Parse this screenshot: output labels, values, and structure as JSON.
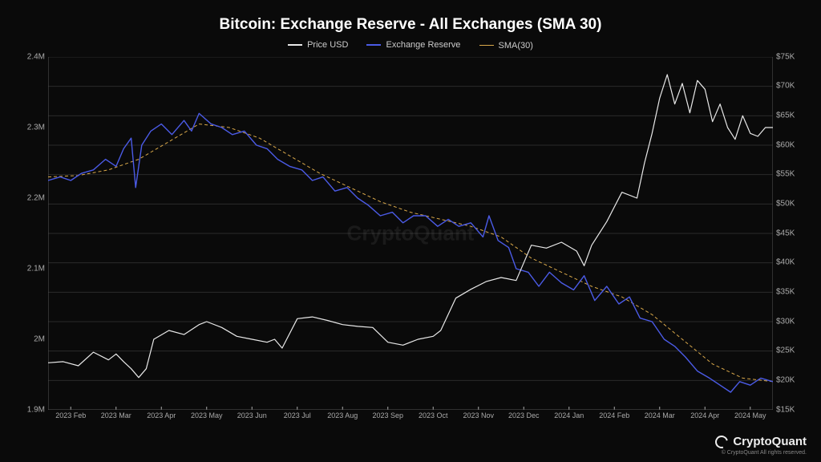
{
  "title": "Bitcoin: Exchange Reserve - All Exchanges (SMA 30)",
  "watermark": "CryptoQuant",
  "brand": {
    "name": "CryptoQuant",
    "copyright": "© CryptoQuant All rights reserved."
  },
  "background_color": "#0a0a0a",
  "text_color": "#ffffff",
  "axis_text_color": "#aaaaaa",
  "grid_color": "#2a2a2a",
  "title_fontsize": 19,
  "legend_fontsize": 11,
  "axis_fontsize": 10,
  "legend": [
    {
      "label": "Price USD",
      "color": "#e8e8e8"
    },
    {
      "label": "Exchange Reserve",
      "color": "#4b5be6"
    },
    {
      "label": "SMA(30)",
      "color": "#d9a84a"
    }
  ],
  "y_left": {
    "min": 1.9,
    "max": 2.4,
    "unit": "M",
    "ticks": [
      1.9,
      2.0,
      2.1,
      2.2,
      2.3,
      2.4
    ],
    "tick_labels": [
      "1.9M",
      "2M",
      "2.1M",
      "2.2M",
      "2.3M",
      "2.4M"
    ]
  },
  "y_right": {
    "min": 15000,
    "max": 75000,
    "unit": "K",
    "ticks": [
      15000,
      20000,
      25000,
      30000,
      35000,
      40000,
      45000,
      50000,
      55000,
      60000,
      65000,
      70000,
      75000
    ],
    "tick_labels": [
      "$15K",
      "$20K",
      "$25K",
      "$30K",
      "$35K",
      "$40K",
      "$45K",
      "$50K",
      "$55K",
      "$60K",
      "$65K",
      "$70K",
      "$75K"
    ]
  },
  "x_axis": {
    "min": 0,
    "max": 480,
    "ticks": [
      15,
      45,
      75,
      105,
      135,
      165,
      195,
      225,
      255,
      285,
      315,
      345,
      375,
      405,
      435,
      465
    ],
    "tick_labels": [
      "2023 Feb",
      "2023 Mar",
      "2023 Apr",
      "2023 May",
      "2023 Jun",
      "2023 Jul",
      "2023 Aug",
      "2023 Sep",
      "2023 Oct",
      "2023 Nov",
      "2023 Dec",
      "2024 Jan",
      "2024 Feb",
      "2024 Mar",
      "2024 Apr",
      "2024 May"
    ]
  },
  "series": {
    "price_usd": {
      "color": "#e8e8e8",
      "line_width": 1.2,
      "y_axis": "right",
      "data": [
        [
          0,
          23000
        ],
        [
          10,
          23200
        ],
        [
          20,
          22500
        ],
        [
          30,
          24800
        ],
        [
          40,
          23500
        ],
        [
          45,
          24500
        ],
        [
          50,
          23200
        ],
        [
          55,
          22000
        ],
        [
          60,
          20500
        ],
        [
          65,
          22000
        ],
        [
          70,
          27000
        ],
        [
          80,
          28500
        ],
        [
          90,
          27800
        ],
        [
          100,
          29500
        ],
        [
          105,
          30000
        ],
        [
          115,
          29000
        ],
        [
          125,
          27500
        ],
        [
          135,
          27000
        ],
        [
          145,
          26500
        ],
        [
          150,
          27000
        ],
        [
          155,
          25500
        ],
        [
          165,
          30500
        ],
        [
          175,
          30800
        ],
        [
          185,
          30200
        ],
        [
          195,
          29500
        ],
        [
          205,
          29200
        ],
        [
          215,
          29000
        ],
        [
          225,
          26500
        ],
        [
          235,
          26000
        ],
        [
          245,
          27000
        ],
        [
          255,
          27500
        ],
        [
          260,
          28500
        ],
        [
          270,
          34000
        ],
        [
          280,
          35500
        ],
        [
          290,
          36800
        ],
        [
          300,
          37500
        ],
        [
          310,
          37000
        ],
        [
          320,
          43000
        ],
        [
          330,
          42500
        ],
        [
          340,
          43500
        ],
        [
          350,
          42000
        ],
        [
          355,
          39500
        ],
        [
          360,
          43000
        ],
        [
          370,
          47000
        ],
        [
          380,
          52000
        ],
        [
          390,
          51000
        ],
        [
          395,
          57000
        ],
        [
          400,
          62000
        ],
        [
          405,
          68000
        ],
        [
          410,
          72000
        ],
        [
          415,
          67000
        ],
        [
          420,
          70500
        ],
        [
          425,
          65500
        ],
        [
          430,
          71000
        ],
        [
          435,
          69500
        ],
        [
          440,
          64000
        ],
        [
          445,
          67000
        ],
        [
          450,
          63000
        ],
        [
          455,
          61000
        ],
        [
          460,
          65000
        ],
        [
          465,
          62000
        ],
        [
          470,
          61500
        ],
        [
          475,
          63000
        ],
        [
          480,
          63000
        ]
      ]
    },
    "exchange_reserve": {
      "color": "#4b5be6",
      "line_width": 1.4,
      "y_axis": "left",
      "data": [
        [
          0,
          2.225
        ],
        [
          8,
          2.23
        ],
        [
          15,
          2.225
        ],
        [
          22,
          2.235
        ],
        [
          30,
          2.24
        ],
        [
          38,
          2.255
        ],
        [
          45,
          2.245
        ],
        [
          50,
          2.27
        ],
        [
          55,
          2.285
        ],
        [
          58,
          2.215
        ],
        [
          62,
          2.275
        ],
        [
          68,
          2.295
        ],
        [
          75,
          2.305
        ],
        [
          82,
          2.29
        ],
        [
          90,
          2.31
        ],
        [
          95,
          2.295
        ],
        [
          100,
          2.32
        ],
        [
          108,
          2.305
        ],
        [
          115,
          2.3
        ],
        [
          122,
          2.29
        ],
        [
          130,
          2.295
        ],
        [
          138,
          2.275
        ],
        [
          145,
          2.27
        ],
        [
          152,
          2.255
        ],
        [
          160,
          2.245
        ],
        [
          168,
          2.24
        ],
        [
          175,
          2.225
        ],
        [
          182,
          2.23
        ],
        [
          190,
          2.21
        ],
        [
          198,
          2.215
        ],
        [
          205,
          2.2
        ],
        [
          212,
          2.19
        ],
        [
          220,
          2.175
        ],
        [
          228,
          2.18
        ],
        [
          235,
          2.165
        ],
        [
          242,
          2.175
        ],
        [
          250,
          2.175
        ],
        [
          258,
          2.16
        ],
        [
          265,
          2.17
        ],
        [
          272,
          2.16
        ],
        [
          280,
          2.165
        ],
        [
          288,
          2.145
        ],
        [
          292,
          2.175
        ],
        [
          298,
          2.14
        ],
        [
          305,
          2.13
        ],
        [
          310,
          2.1
        ],
        [
          318,
          2.095
        ],
        [
          325,
          2.075
        ],
        [
          332,
          2.095
        ],
        [
          340,
          2.08
        ],
        [
          348,
          2.07
        ],
        [
          355,
          2.09
        ],
        [
          362,
          2.055
        ],
        [
          370,
          2.075
        ],
        [
          378,
          2.05
        ],
        [
          385,
          2.06
        ],
        [
          392,
          2.03
        ],
        [
          400,
          2.025
        ],
        [
          408,
          2.0
        ],
        [
          415,
          1.99
        ],
        [
          422,
          1.975
        ],
        [
          430,
          1.955
        ],
        [
          438,
          1.945
        ],
        [
          445,
          1.935
        ],
        [
          452,
          1.925
        ],
        [
          458,
          1.94
        ],
        [
          465,
          1.935
        ],
        [
          472,
          1.945
        ],
        [
          480,
          1.94
        ]
      ]
    },
    "sma30": {
      "color": "#d9a84a",
      "line_width": 1.0,
      "dash": "4,3",
      "y_axis": "left",
      "data": [
        [
          0,
          2.23
        ],
        [
          20,
          2.232
        ],
        [
          40,
          2.24
        ],
        [
          60,
          2.255
        ],
        [
          80,
          2.28
        ],
        [
          100,
          2.305
        ],
        [
          120,
          2.3
        ],
        [
          140,
          2.285
        ],
        [
          160,
          2.26
        ],
        [
          180,
          2.235
        ],
        [
          200,
          2.215
        ],
        [
          220,
          2.195
        ],
        [
          240,
          2.18
        ],
        [
          260,
          2.17
        ],
        [
          280,
          2.16
        ],
        [
          300,
          2.145
        ],
        [
          320,
          2.115
        ],
        [
          340,
          2.095
        ],
        [
          360,
          2.075
        ],
        [
          380,
          2.06
        ],
        [
          400,
          2.035
        ],
        [
          420,
          2.0
        ],
        [
          440,
          1.965
        ],
        [
          460,
          1.945
        ],
        [
          480,
          1.94
        ]
      ]
    }
  }
}
